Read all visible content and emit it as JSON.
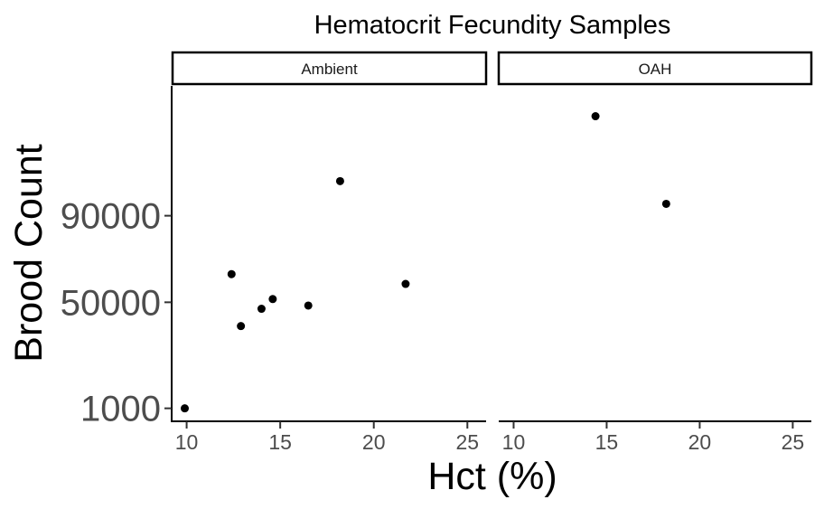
{
  "chart_data": {
    "type": "scatter",
    "title": "Hematocrit Fecundity Samples",
    "xlabel": "Hct (%)",
    "ylabel": "Brood Count",
    "xlim": [
      9.2,
      26
    ],
    "ylim": [
      -5000,
      150000
    ],
    "x_ticks": [
      10,
      15,
      20,
      25
    ],
    "y_ticks": [
      1000,
      50000,
      90000
    ],
    "grid": false,
    "point_color": "#000000",
    "facets": [
      {
        "label": "Ambient",
        "points": [
          {
            "x": 9.9,
            "y": 1000
          },
          {
            "x": 12.4,
            "y": 63000
          },
          {
            "x": 12.9,
            "y": 39000
          },
          {
            "x": 14.0,
            "y": 47000
          },
          {
            "x": 14.6,
            "y": 51500
          },
          {
            "x": 16.5,
            "y": 48500
          },
          {
            "x": 18.2,
            "y": 106000
          },
          {
            "x": 21.7,
            "y": 58500
          }
        ]
      },
      {
        "label": "OAH",
        "points": [
          {
            "x": 14.4,
            "y": 136000
          },
          {
            "x": 18.2,
            "y": 95500
          }
        ]
      }
    ]
  }
}
